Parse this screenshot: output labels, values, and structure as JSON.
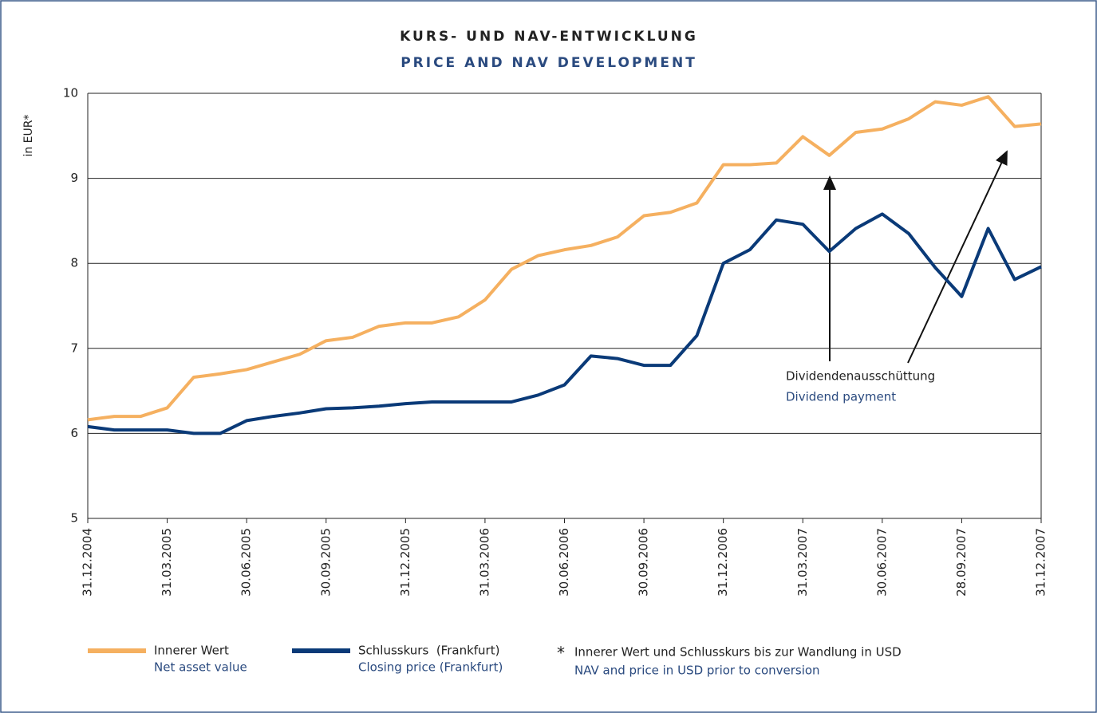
{
  "chart_data": {
    "type": "line",
    "title": "KURS- UND NAV-ENTWICKLUNG",
    "subtitle": "PRICE AND NAV DEVELOPMENT",
    "y_label": "in EUR*",
    "categories": [
      "31.12.2004",
      null,
      null,
      "31.03.2005",
      null,
      null,
      "30.06.2005",
      null,
      null,
      "30.09.2005",
      null,
      null,
      "31.12.2005",
      null,
      null,
      "31.03.2006",
      null,
      null,
      "30.06.2006",
      null,
      null,
      "30.09.2006",
      null,
      null,
      "31.12.2006",
      null,
      null,
      "31.03.2007",
      null,
      null,
      "30.06.2007",
      null,
      null,
      "28.09.2007",
      null,
      null,
      "31.12.2007"
    ],
    "series": [
      {
        "name": "Innerer Wert",
        "name_en": "Net asset value",
        "color": "#f5b060",
        "values": [
          6.16,
          6.2,
          6.2,
          6.3,
          6.66,
          6.7,
          6.75,
          6.84,
          6.93,
          7.09,
          7.13,
          7.26,
          7.3,
          7.3,
          7.37,
          7.57,
          7.93,
          8.09,
          8.16,
          8.21,
          8.31,
          8.56,
          8.6,
          8.71,
          9.16,
          9.16,
          9.18,
          9.49,
          9.27,
          9.54,
          9.58,
          9.7,
          9.9,
          9.86,
          9.96,
          9.61,
          9.64
        ]
      },
      {
        "name": "Schlusskurs  (Frankfurt)",
        "name_en": "Closing price (Frankfurt)",
        "color": "#0a3a78",
        "values": [
          6.08,
          6.04,
          6.04,
          6.04,
          6.0,
          6.0,
          6.15,
          6.2,
          6.24,
          6.29,
          6.3,
          6.32,
          6.35,
          6.37,
          6.37,
          6.37,
          6.37,
          6.45,
          6.57,
          6.91,
          6.88,
          6.8,
          6.8,
          7.15,
          8.0,
          8.16,
          8.51,
          8.46,
          8.14,
          8.41,
          8.58,
          8.35,
          7.95,
          7.61,
          8.41,
          7.81,
          7.96
        ]
      }
    ],
    "ylim": [
      5,
      10
    ],
    "yticks": [
      5,
      6,
      7,
      8,
      9,
      10
    ],
    "grid": true,
    "annotation": "Dividendenausschüttung",
    "annotation_en": "Dividend payment",
    "footnote_mark": "*",
    "footnote": "Innerer Wert und Schlusskurs bis zur Wandlung in USD",
    "footnote_en": "NAV and price in USD prior to conversion"
  }
}
